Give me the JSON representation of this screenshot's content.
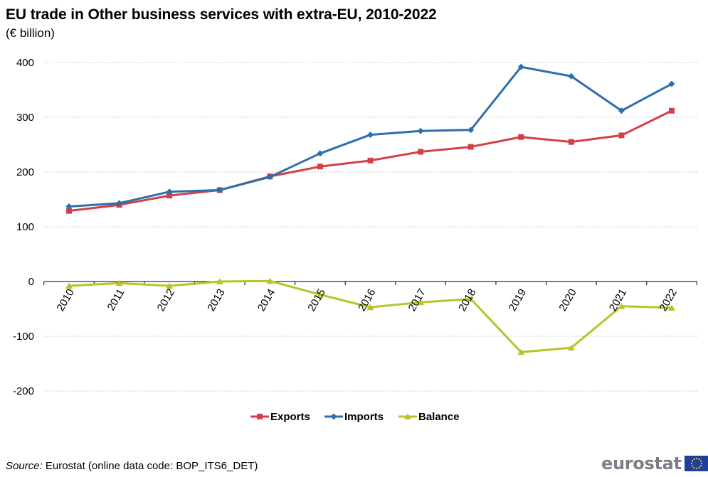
{
  "header": {
    "title": "EU trade in Other business services with extra-EU, 2010-2022",
    "subtitle": "(€ billion)"
  },
  "footer": {
    "source_label": "Source:",
    "source_text": " Eurostat (online data code: BOP_ITS6_DET)",
    "logo_text": "eurostat"
  },
  "chart_data": {
    "type": "line",
    "title": "EU trade in Other business services with extra-EU, 2010-2022",
    "subtitle": "(€ billion)",
    "categories": [
      "2010",
      "2011",
      "2012",
      "2013",
      "2014",
      "2015",
      "2016",
      "2017",
      "2018",
      "2019",
      "2020",
      "2021",
      "2022"
    ],
    "y_ticks": [
      "400",
      "300",
      "200",
      "100",
      "0",
      "-100",
      "-200"
    ],
    "ylim": [
      -200,
      400
    ],
    "grid": true,
    "legend_position": "bottom",
    "series": [
      {
        "name": "Exports",
        "color": "#d33f45",
        "marker": "square",
        "values": [
          129,
          140,
          157,
          167,
          192,
          210,
          221,
          237,
          246,
          264,
          255,
          267,
          312
        ]
      },
      {
        "name": "Imports",
        "color": "#2e6eae",
        "marker": "diamond",
        "values": [
          137,
          143,
          164,
          167,
          191,
          234,
          268,
          275,
          277,
          392,
          375,
          312,
          361
        ]
      },
      {
        "name": "Balance",
        "color": "#b8c424",
        "marker": "triangle",
        "values": [
          -8,
          -3,
          -8,
          0,
          1,
          -24,
          -47,
          -38,
          -32,
          -129,
          -121,
          -45,
          -48
        ]
      }
    ]
  }
}
